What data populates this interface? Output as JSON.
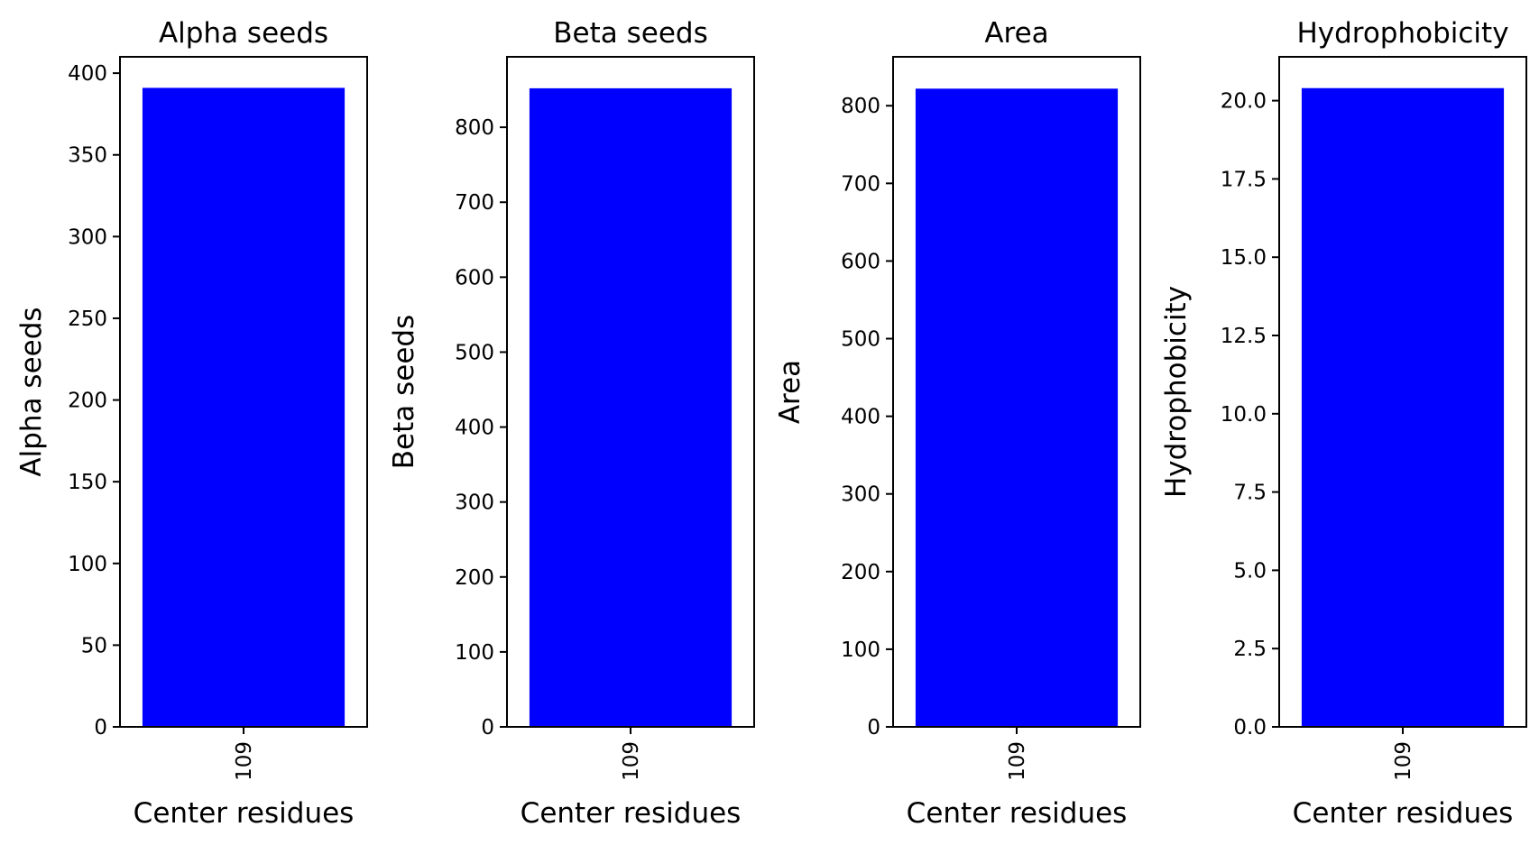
{
  "chart_data": [
    {
      "type": "bar",
      "title": "Alpha seeds",
      "xlabel": "Center residues",
      "ylabel": "Alpha seeds",
      "categories": [
        "109"
      ],
      "values": [
        391
      ],
      "ylim": [
        0,
        410
      ],
      "yticks": [
        0,
        50,
        100,
        150,
        200,
        250,
        300,
        350,
        400
      ],
      "ytick_labels": [
        "0",
        "50",
        "100",
        "150",
        "200",
        "250",
        "300",
        "350",
        "400"
      ],
      "bar_color": "#0000ff",
      "grid": false
    },
    {
      "type": "bar",
      "title": "Beta seeds",
      "xlabel": "Center residues",
      "ylabel": "Beta seeds",
      "categories": [
        "109"
      ],
      "values": [
        852
      ],
      "ylim": [
        0,
        894
      ],
      "yticks": [
        0,
        100,
        200,
        300,
        400,
        500,
        600,
        700,
        800
      ],
      "ytick_labels": [
        "0",
        "100",
        "200",
        "300",
        "400",
        "500",
        "600",
        "700",
        "800"
      ],
      "bar_color": "#0000ff",
      "grid": false
    },
    {
      "type": "bar",
      "title": "Area",
      "xlabel": "Center residues",
      "ylabel": "Area",
      "categories": [
        "109"
      ],
      "values": [
        822
      ],
      "ylim": [
        0,
        863
      ],
      "yticks": [
        0,
        100,
        200,
        300,
        400,
        500,
        600,
        700,
        800
      ],
      "ytick_labels": [
        "0",
        "100",
        "200",
        "300",
        "400",
        "500",
        "600",
        "700",
        "800"
      ],
      "bar_color": "#0000ff",
      "grid": false
    },
    {
      "type": "bar",
      "title": "Hydrophobicity",
      "xlabel": "Center residues",
      "ylabel": "Hydrophobicity",
      "categories": [
        "109"
      ],
      "values": [
        20.4
      ],
      "ylim": [
        0,
        21.4
      ],
      "yticks": [
        0,
        2.5,
        5,
        7.5,
        10,
        12.5,
        15,
        17.5,
        20
      ],
      "ytick_labels": [
        "0.0",
        "2.5",
        "5.0",
        "7.5",
        "10.0",
        "12.5",
        "15.0",
        "17.5",
        "20.0"
      ],
      "bar_color": "#0000ff",
      "grid": false
    }
  ]
}
